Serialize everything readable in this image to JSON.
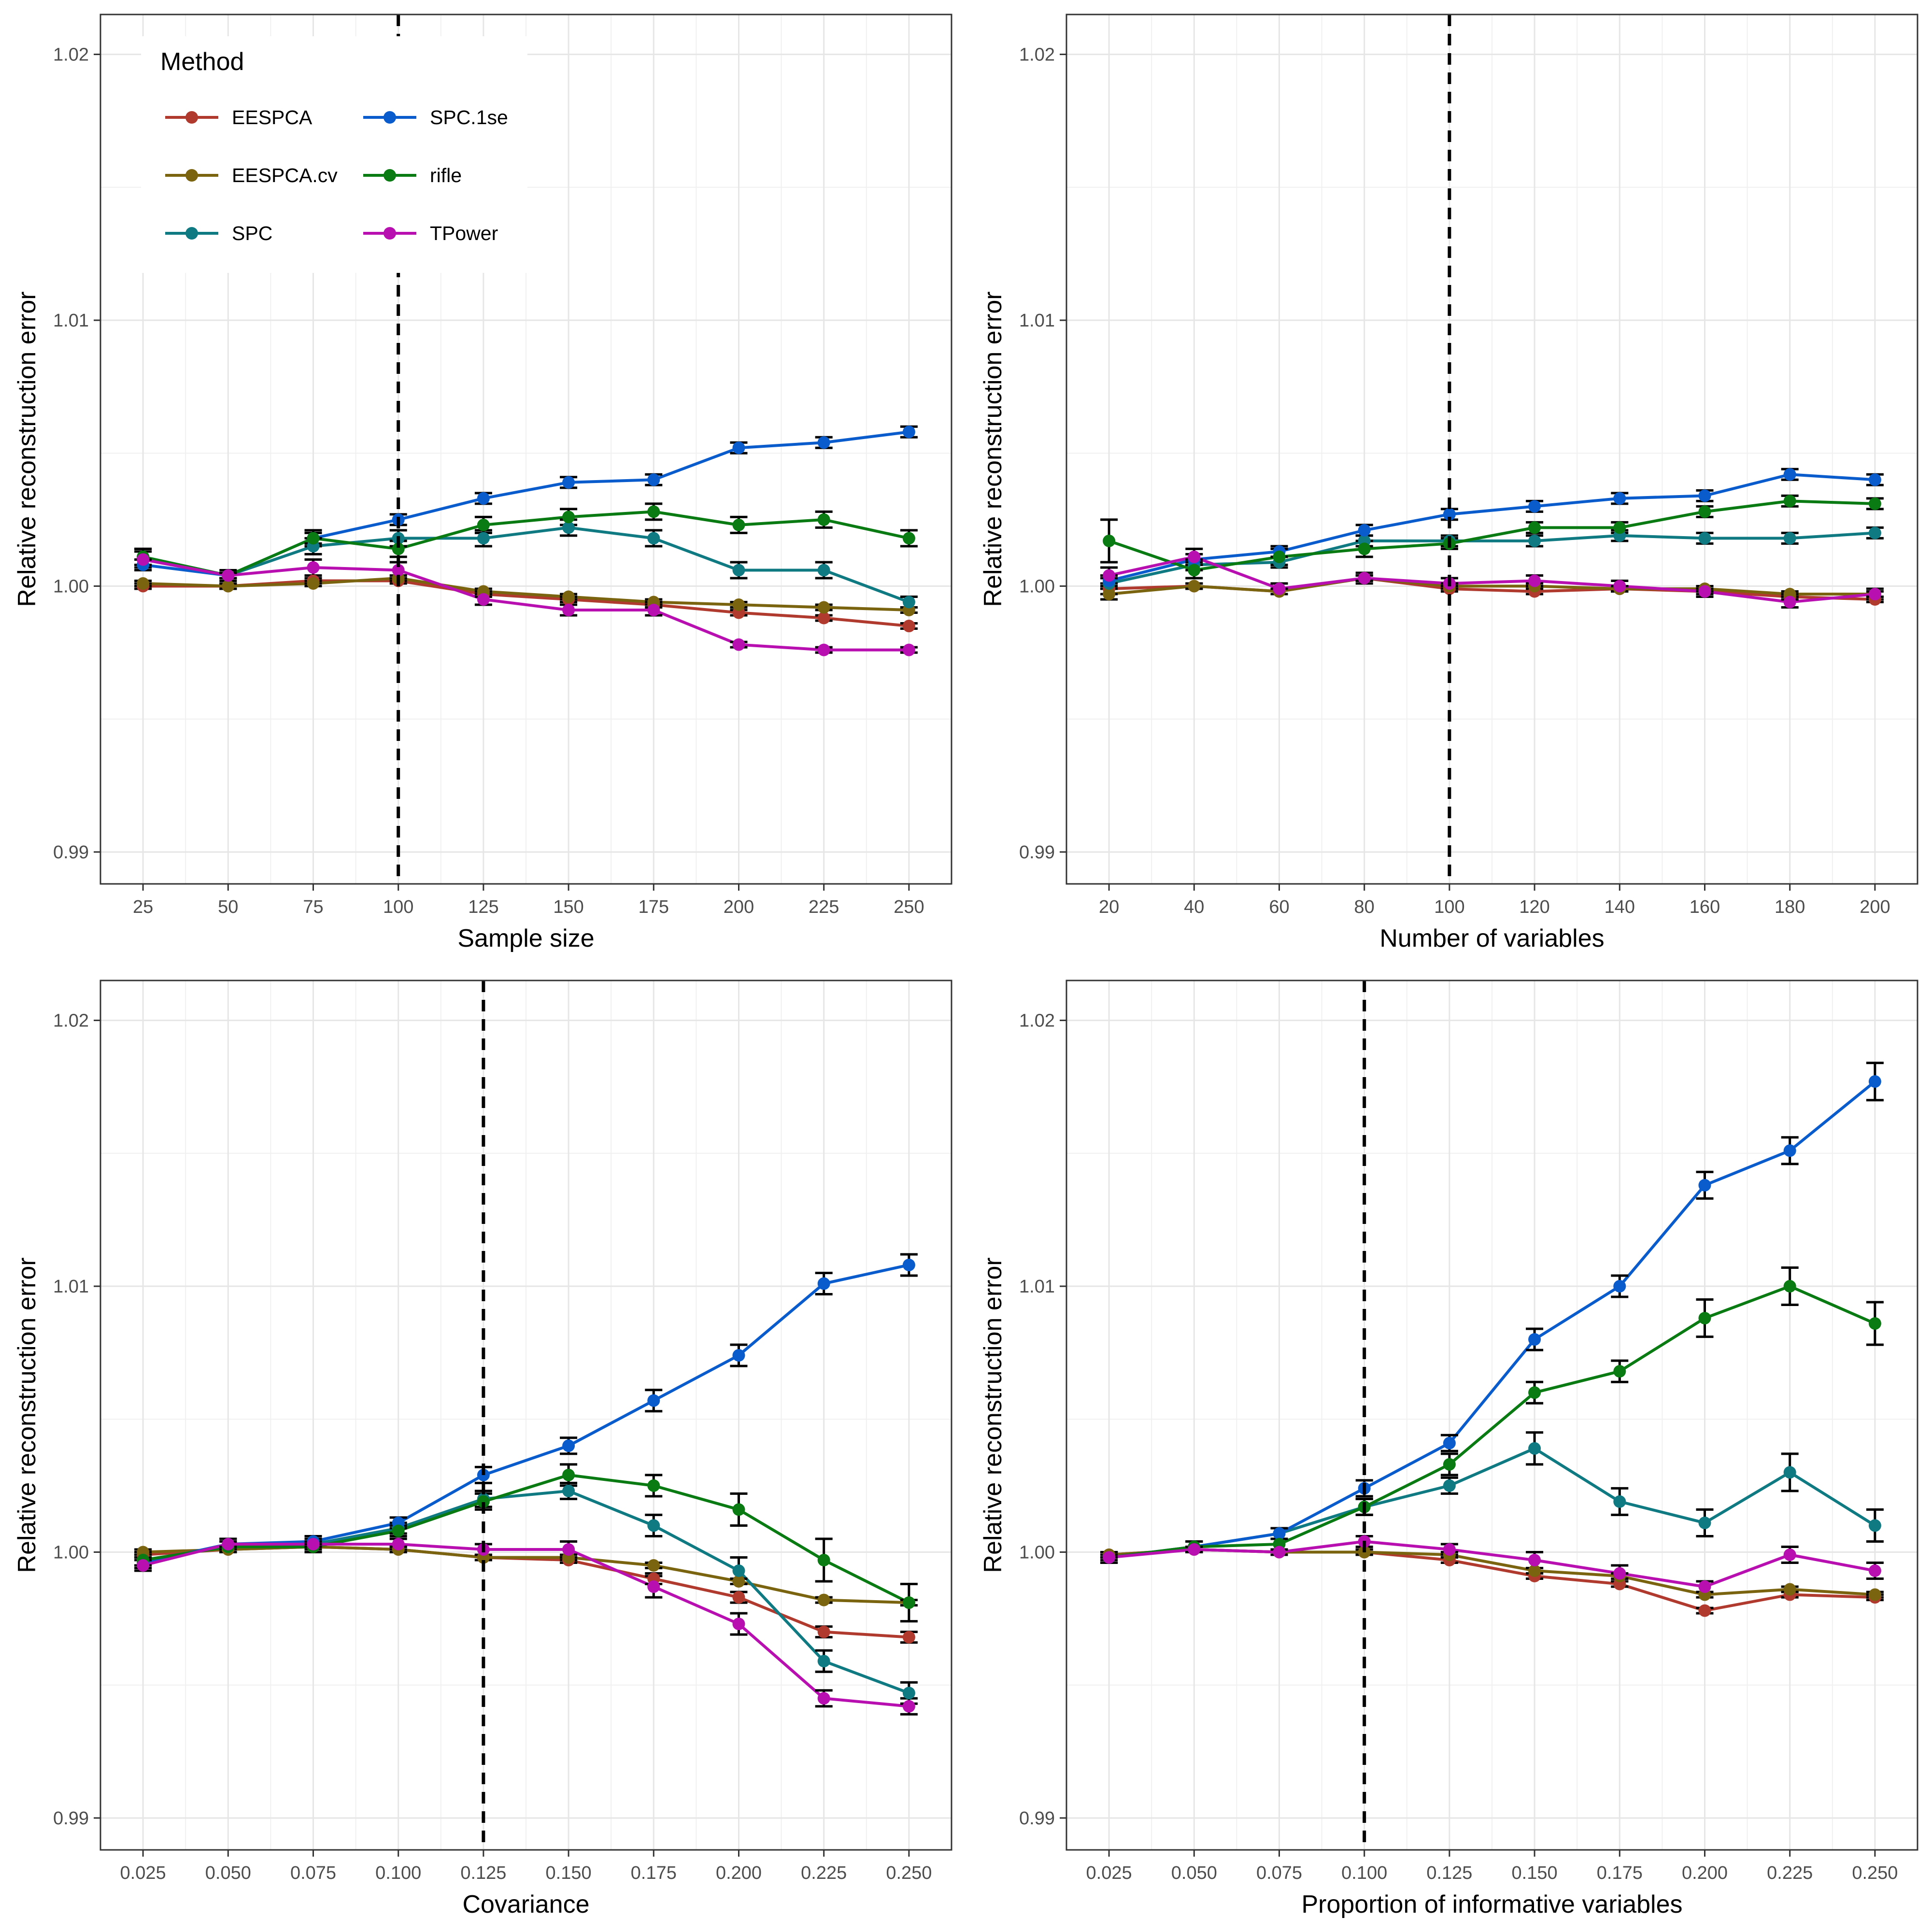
{
  "legend": {
    "title": "Method",
    "entries": [
      {
        "name": "EESPCA",
        "color": "#b03a2e"
      },
      {
        "name": "EESPCA.cv",
        "color": "#7a6410"
      },
      {
        "name": "SPC",
        "color": "#0f7a82"
      },
      {
        "name": "SPC.1se",
        "color": "#0a5ccc"
      },
      {
        "name": "rifle",
        "color": "#0a7a12"
      },
      {
        "name": "TPower",
        "color": "#b80fb0"
      }
    ]
  },
  "chart_data": [
    {
      "type": "line",
      "xlabel": "Sample size",
      "ylabel": "Relative reconstruction error",
      "x": [
        25,
        50,
        75,
        100,
        125,
        150,
        175,
        200,
        225,
        250
      ],
      "x_tick_labels": [
        "25",
        "50",
        "75",
        "100",
        "125",
        "150",
        "175",
        "200",
        "225",
        "250"
      ],
      "y_ticks": [
        0.99,
        1.0,
        1.01,
        1.02
      ],
      "y_tick_labels": [
        "0.99",
        "1.00",
        "1.01",
        "1.02"
      ],
      "ylim": [
        0.9888,
        1.0215
      ],
      "vline": 100,
      "series": [
        {
          "name": "EESPCA",
          "values": [
            1.0,
            1.0,
            1.0002,
            1.0002,
            0.9997,
            0.9995,
            0.9993,
            0.999,
            0.9988,
            0.9985
          ],
          "err": [
            0.0001,
            0.0001,
            0.0001,
            0.0001,
            0.0001,
            0.0001,
            0.0001,
            0.0001,
            0.0001,
            0.0001
          ]
        },
        {
          "name": "EESPCA.cv",
          "values": [
            1.0001,
            1.0,
            1.0001,
            1.0003,
            0.9998,
            0.9996,
            0.9994,
            0.9993,
            0.9992,
            0.9991
          ],
          "err": [
            0.0001,
            0.0001,
            0.0001,
            0.0001,
            0.0001,
            0.0001,
            0.0001,
            0.0001,
            0.0001,
            0.0001
          ]
        },
        {
          "name": "SPC",
          "values": [
            1.0011,
            1.0004,
            1.0015,
            1.0018,
            1.0018,
            1.0022,
            1.0018,
            1.0006,
            1.0006,
            0.9994
          ],
          "err": [
            0.0003,
            0.0001,
            0.0003,
            0.0003,
            0.0003,
            0.0003,
            0.0003,
            0.0003,
            0.0003,
            0.0002
          ]
        },
        {
          "name": "SPC.1se",
          "values": [
            1.0008,
            1.0004,
            1.0018,
            1.0025,
            1.0033,
            1.0039,
            1.004,
            1.0052,
            1.0054,
            1.0058
          ],
          "err": [
            0.0002,
            0.0001,
            0.0002,
            0.0002,
            0.0002,
            0.0002,
            0.0002,
            0.0002,
            0.0002,
            0.0002
          ]
        },
        {
          "name": "rifle",
          "values": [
            1.0011,
            1.0004,
            1.0018,
            1.0014,
            1.0023,
            1.0026,
            1.0028,
            1.0023,
            1.0025,
            1.0018
          ],
          "err": [
            0.0003,
            0.0002,
            0.0003,
            0.0003,
            0.0003,
            0.0003,
            0.0003,
            0.0003,
            0.0003,
            0.0003
          ]
        },
        {
          "name": "TPower",
          "values": [
            1.001,
            1.0004,
            1.0007,
            1.0006,
            0.9995,
            0.9991,
            0.9991,
            0.9978,
            0.9976,
            0.9976
          ],
          "err": [
            0.0003,
            0.0001,
            0.0003,
            0.0003,
            0.0002,
            0.0002,
            0.0002,
            0.0001,
            0.0001,
            0.0001
          ]
        }
      ]
    },
    {
      "type": "line",
      "xlabel": "Number of variables",
      "ylabel": "Relative reconstruction error",
      "x": [
        20,
        40,
        60,
        80,
        100,
        120,
        140,
        160,
        180,
        200
      ],
      "x_tick_labels": [
        "20",
        "40",
        "60",
        "80",
        "100",
        "120",
        "140",
        "160",
        "180",
        "200"
      ],
      "y_ticks": [
        0.99,
        1.0,
        1.01,
        1.02
      ],
      "y_tick_labels": [
        "0.99",
        "1.00",
        "1.01",
        "1.02"
      ],
      "ylim": [
        0.9888,
        1.0215
      ],
      "vline": 100,
      "series": [
        {
          "name": "EESPCA",
          "values": [
            0.9999,
            1.0,
            0.9998,
            1.0003,
            0.9999,
            0.9998,
            0.9999,
            0.9998,
            0.9996,
            0.9995
          ],
          "err": [
            0.0002,
            0.0001,
            0.0001,
            0.0001,
            0.0001,
            0.0001,
            0.0001,
            0.0001,
            0.0001,
            0.0001
          ]
        },
        {
          "name": "EESPCA.cv",
          "values": [
            0.9997,
            1.0,
            0.9998,
            1.0003,
            1.0,
            1.0,
            0.9999,
            0.9999,
            0.9997,
            0.9997
          ],
          "err": [
            0.0002,
            0.0001,
            0.0001,
            0.0001,
            0.0001,
            0.0001,
            0.0001,
            0.0001,
            0.0001,
            0.0001
          ]
        },
        {
          "name": "SPC",
          "values": [
            1.0001,
            1.0008,
            1.0009,
            1.0017,
            1.0017,
            1.0017,
            1.0019,
            1.0018,
            1.0018,
            1.002
          ],
          "err": [
            0.0002,
            0.0002,
            0.0002,
            0.0002,
            0.0002,
            0.0002,
            0.0002,
            0.0002,
            0.0002,
            0.0002
          ]
        },
        {
          "name": "SPC.1se",
          "values": [
            1.0002,
            1.001,
            1.0013,
            1.0021,
            1.0027,
            1.003,
            1.0033,
            1.0034,
            1.0042,
            1.004
          ],
          "err": [
            0.0002,
            0.0002,
            0.0002,
            0.0002,
            0.0002,
            0.0002,
            0.0002,
            0.0002,
            0.0002,
            0.0002
          ]
        },
        {
          "name": "rifle",
          "values": [
            1.0017,
            1.0006,
            1.0011,
            1.0014,
            1.0016,
            1.0022,
            1.0022,
            1.0028,
            1.0032,
            1.0031
          ],
          "err": [
            0.0008,
            0.0003,
            0.0003,
            0.0003,
            0.0002,
            0.0002,
            0.0002,
            0.0002,
            0.0002,
            0.0002
          ]
        },
        {
          "name": "TPower",
          "values": [
            1.0004,
            1.0011,
            0.9999,
            1.0003,
            1.0001,
            1.0002,
            1.0,
            0.9998,
            0.9994,
            0.9997
          ],
          "err": [
            0.0003,
            0.0003,
            0.0002,
            0.0002,
            0.0002,
            0.0002,
            0.0002,
            0.0002,
            0.0002,
            0.0002
          ]
        }
      ]
    },
    {
      "type": "line",
      "xlabel": "Covariance",
      "ylabel": "Relative reconstruction error",
      "x": [
        0.025,
        0.05,
        0.075,
        0.1,
        0.125,
        0.15,
        0.175,
        0.2,
        0.225,
        0.25
      ],
      "x_tick_labels": [
        "0.025",
        "0.050",
        "0.075",
        "0.100",
        "0.125",
        "0.150",
        "0.175",
        "0.200",
        "0.225",
        "0.250"
      ],
      "y_ticks": [
        0.99,
        1.0,
        1.01,
        1.02
      ],
      "y_tick_labels": [
        "0.99",
        "1.00",
        "1.01",
        "1.02"
      ],
      "ylim": [
        0.9888,
        1.0215
      ],
      "vline": 0.125,
      "series": [
        {
          "name": "EESPCA",
          "values": [
            0.9999,
            1.0001,
            1.0002,
            1.0001,
            0.9998,
            0.9997,
            0.999,
            0.9983,
            0.997,
            0.9968
          ],
          "err": [
            0.0001,
            0.0001,
            0.0001,
            0.0001,
            0.0001,
            0.0001,
            0.0002,
            0.0002,
            0.0002,
            0.0002
          ]
        },
        {
          "name": "EESPCA.cv",
          "values": [
            1.0,
            1.0001,
            1.0002,
            1.0001,
            0.9998,
            0.9998,
            0.9995,
            0.9989,
            0.9982,
            0.9981
          ],
          "err": [
            0.0001,
            0.0001,
            0.0001,
            0.0001,
            0.0001,
            0.0001,
            0.0001,
            0.0001,
            0.0001,
            0.0001
          ]
        },
        {
          "name": "SPC",
          "values": [
            0.9997,
            1.0002,
            1.0003,
            1.0009,
            1.002,
            1.0023,
            1.001,
            0.9993,
            0.9959,
            0.9947
          ],
          "err": [
            0.0002,
            0.0002,
            0.0002,
            0.0002,
            0.0003,
            0.0003,
            0.0004,
            0.0005,
            0.0004,
            0.0004
          ]
        },
        {
          "name": "SPC.1se",
          "values": [
            0.9996,
            1.0003,
            1.0004,
            1.0011,
            1.0029,
            1.004,
            1.0057,
            1.0074,
            1.0101,
            1.0108
          ],
          "err": [
            0.0002,
            0.0002,
            0.0002,
            0.0002,
            0.0003,
            0.0003,
            0.0004,
            0.0004,
            0.0004,
            0.0004
          ]
        },
        {
          "name": "rifle",
          "values": [
            0.9997,
            1.0002,
            1.0002,
            1.0008,
            1.0019,
            1.0029,
            1.0025,
            1.0016,
            0.9997,
            0.9981
          ],
          "err": [
            0.0002,
            0.0002,
            0.0002,
            0.0002,
            0.0003,
            0.0004,
            0.0004,
            0.0006,
            0.0008,
            0.0007
          ]
        },
        {
          "name": "TPower",
          "values": [
            0.9995,
            1.0003,
            1.0003,
            1.0003,
            1.0001,
            1.0001,
            0.9987,
            0.9973,
            0.9945,
            0.9942
          ],
          "err": [
            0.0002,
            0.0002,
            0.0002,
            0.0002,
            0.0002,
            0.0003,
            0.0004,
            0.0004,
            0.0003,
            0.0003
          ]
        }
      ]
    },
    {
      "type": "line",
      "xlabel": "Proportion of informative variables",
      "ylabel": "Relative reconstruction error",
      "x": [
        0.025,
        0.05,
        0.075,
        0.1,
        0.125,
        0.15,
        0.175,
        0.2,
        0.225,
        0.25
      ],
      "x_tick_labels": [
        "0.025",
        "0.050",
        "0.075",
        "0.100",
        "0.125",
        "0.150",
        "0.175",
        "0.200",
        "0.225",
        "0.250"
      ],
      "y_ticks": [
        0.99,
        1.0,
        1.01,
        1.02
      ],
      "y_tick_labels": [
        "0.99",
        "1.00",
        "1.01",
        "1.02"
      ],
      "ylim": [
        0.9888,
        1.0215
      ],
      "vline": 0.1,
      "series": [
        {
          "name": "EESPCA",
          "values": [
            0.9999,
            1.0001,
            1.0,
            1.0,
            0.9997,
            0.9991,
            0.9988,
            0.9978,
            0.9984,
            0.9983
          ],
          "err": [
            0.0001,
            0.0001,
            0.0001,
            0.0001,
            0.0001,
            0.0001,
            0.0001,
            0.0001,
            0.0001,
            0.0001
          ]
        },
        {
          "name": "EESPCA.cv",
          "values": [
            0.9999,
            1.0001,
            1.0,
            1.0,
            0.9999,
            0.9993,
            0.9991,
            0.9984,
            0.9986,
            0.9984
          ],
          "err": [
            0.0001,
            0.0001,
            0.0001,
            0.0001,
            0.0001,
            0.0001,
            0.0001,
            0.0001,
            0.0001,
            0.0001
          ]
        },
        {
          "name": "SPC",
          "values": [
            0.9998,
            1.0002,
            1.0007,
            1.0017,
            1.0025,
            1.0039,
            1.0019,
            1.0011,
            1.003,
            1.001
          ],
          "err": [
            0.0002,
            0.0002,
            0.0002,
            0.0003,
            0.0003,
            0.0006,
            0.0005,
            0.0005,
            0.0007,
            0.0006
          ]
        },
        {
          "name": "SPC.1se",
          "values": [
            0.9998,
            1.0002,
            1.0007,
            1.0024,
            1.0041,
            1.008,
            1.01,
            1.0138,
            1.0151,
            1.0177
          ],
          "err": [
            0.0002,
            0.0002,
            0.0002,
            0.0003,
            0.0003,
            0.0004,
            0.0004,
            0.0005,
            0.0005,
            0.0007
          ]
        },
        {
          "name": "rifle",
          "values": [
            0.9998,
            1.0002,
            1.0003,
            1.0017,
            1.0033,
            1.006,
            1.0068,
            1.0088,
            1.01,
            1.0086
          ],
          "err": [
            0.0002,
            0.0002,
            0.0002,
            0.0003,
            0.0004,
            0.0004,
            0.0004,
            0.0007,
            0.0007,
            0.0008
          ]
        },
        {
          "name": "TPower",
          "values": [
            0.9998,
            1.0001,
            1.0,
            1.0004,
            1.0001,
            0.9997,
            0.9992,
            0.9987,
            0.9999,
            0.9993
          ],
          "err": [
            0.0001,
            0.0001,
            0.0001,
            0.0002,
            0.0002,
            0.0003,
            0.0003,
            0.0002,
            0.0003,
            0.0003
          ]
        }
      ]
    }
  ]
}
